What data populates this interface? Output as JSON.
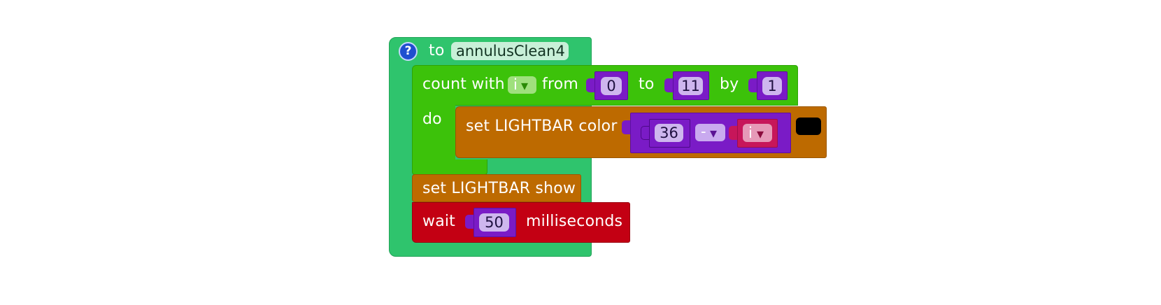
{
  "procedure": {
    "keyword": "to",
    "name": "annulusClean4",
    "help_icon": "question-icon",
    "help_glyph": "?"
  },
  "count_block": {
    "label_count": "count with",
    "variable": "i",
    "label_from": "from",
    "from_value": "0",
    "label_to": "to",
    "to_value": "11",
    "label_by": "by",
    "by_value": "1",
    "label_do": "do"
  },
  "set_color_block": {
    "label": "set LIGHTBAR color",
    "operand_a": "36",
    "operator": "-",
    "operand_b": "i",
    "swatch_color": "#000000"
  },
  "show_block": {
    "label": "set LIGHTBAR show"
  },
  "wait_block": {
    "label": "wait",
    "value": "50",
    "unit": "milliseconds"
  },
  "dropdown_glyph": "▾",
  "colors": {
    "procedure": "#2fc46d",
    "loop": "#3cc20a",
    "lightbar": "#bd6a00",
    "wait": "#c30013",
    "math": "#7a1bc6",
    "variable": "#c7165a"
  }
}
